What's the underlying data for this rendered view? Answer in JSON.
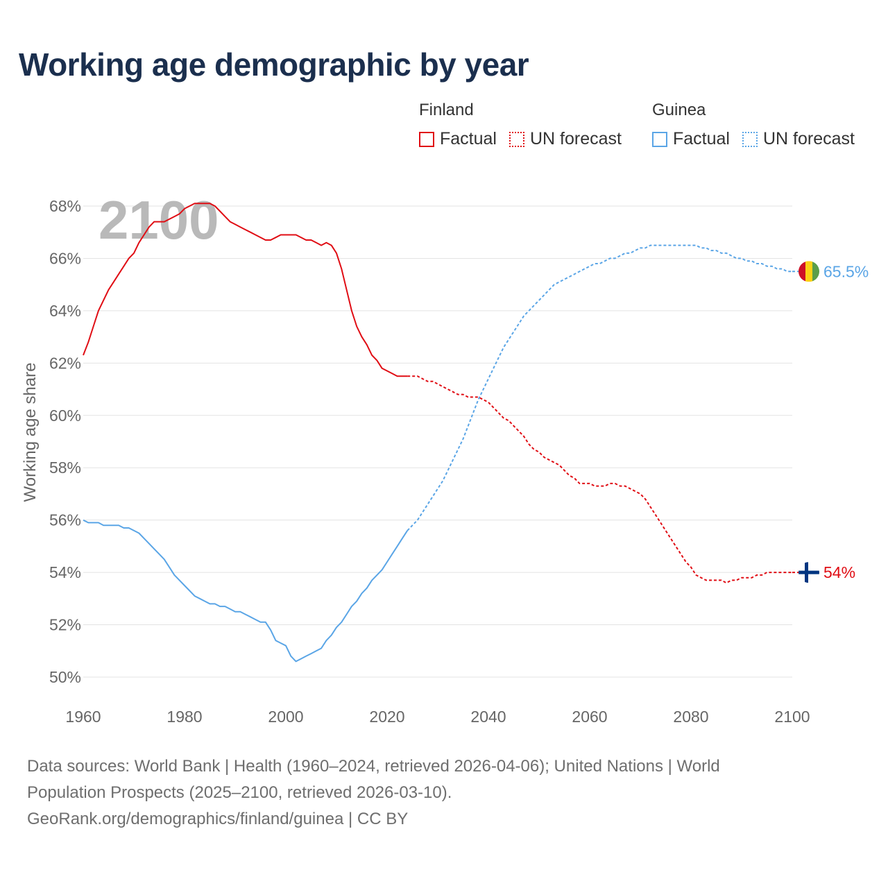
{
  "title": "Working age demographic by year",
  "legend": {
    "groups": [
      {
        "name": "Finland",
        "color": "#e00d14",
        "factual_label": "Factual",
        "forecast_label": "UN forecast"
      },
      {
        "name": "Guinea",
        "color": "#5aa5e6",
        "factual_label": "Factual",
        "forecast_label": "UN forecast"
      }
    ]
  },
  "year_watermark": "2100",
  "footer": {
    "line1": "Data sources: World Bank | Health (1960–2024, retrieved 2026-04-06); United Nations | World",
    "line2": "Population Prospects (2025–2100, retrieved 2026-03-10).",
    "line3": "GeoRank.org/demographics/finland/guinea | CC BY"
  },
  "chart_data": {
    "type": "line",
    "title": "Working age demographic by year",
    "xlabel": "",
    "ylabel": "Working age share",
    "xlim": [
      1960,
      2100
    ],
    "ylim": [
      50,
      68
    ],
    "x_ticks": [
      "1960",
      "1980",
      "2000",
      "2020",
      "2040",
      "2060",
      "2080",
      "2100"
    ],
    "y_ticks": [
      "50%",
      "52%",
      "54%",
      "56%",
      "58%",
      "60%",
      "62%",
      "64%",
      "66%",
      "68%"
    ],
    "factual_end_year": 2024,
    "series": [
      {
        "name": "Finland",
        "color": "#e00d14",
        "end_label": "54%",
        "flag": "finland",
        "points": [
          [
            1960,
            62.3
          ],
          [
            1961,
            62.8
          ],
          [
            1962,
            63.4
          ],
          [
            1963,
            64.0
          ],
          [
            1964,
            64.4
          ],
          [
            1965,
            64.8
          ],
          [
            1966,
            65.1
          ],
          [
            1967,
            65.4
          ],
          [
            1968,
            65.7
          ],
          [
            1969,
            66.0
          ],
          [
            1970,
            66.2
          ],
          [
            1971,
            66.6
          ],
          [
            1972,
            66.9
          ],
          [
            1973,
            67.2
          ],
          [
            1974,
            67.4
          ],
          [
            1975,
            67.4
          ],
          [
            1976,
            67.4
          ],
          [
            1977,
            67.5
          ],
          [
            1978,
            67.6
          ],
          [
            1979,
            67.7
          ],
          [
            1980,
            67.9
          ],
          [
            1981,
            68.0
          ],
          [
            1982,
            68.1
          ],
          [
            1983,
            68.1
          ],
          [
            1984,
            68.1
          ],
          [
            1985,
            68.1
          ],
          [
            1986,
            68.0
          ],
          [
            1987,
            67.8
          ],
          [
            1988,
            67.6
          ],
          [
            1989,
            67.4
          ],
          [
            1990,
            67.3
          ],
          [
            1991,
            67.2
          ],
          [
            1992,
            67.1
          ],
          [
            1993,
            67.0
          ],
          [
            1994,
            66.9
          ],
          [
            1995,
            66.8
          ],
          [
            1996,
            66.7
          ],
          [
            1997,
            66.7
          ],
          [
            1998,
            66.8
          ],
          [
            1999,
            66.9
          ],
          [
            2000,
            66.9
          ],
          [
            2001,
            66.9
          ],
          [
            2002,
            66.9
          ],
          [
            2003,
            66.8
          ],
          [
            2004,
            66.7
          ],
          [
            2005,
            66.7
          ],
          [
            2006,
            66.6
          ],
          [
            2007,
            66.5
          ],
          [
            2008,
            66.6
          ],
          [
            2009,
            66.5
          ],
          [
            2010,
            66.2
          ],
          [
            2011,
            65.6
          ],
          [
            2012,
            64.8
          ],
          [
            2013,
            64.0
          ],
          [
            2014,
            63.4
          ],
          [
            2015,
            63.0
          ],
          [
            2016,
            62.7
          ],
          [
            2017,
            62.3
          ],
          [
            2018,
            62.1
          ],
          [
            2019,
            61.8
          ],
          [
            2020,
            61.7
          ],
          [
            2021,
            61.6
          ],
          [
            2022,
            61.5
          ],
          [
            2023,
            61.5
          ],
          [
            2024,
            61.5
          ],
          [
            2025,
            61.5
          ],
          [
            2026,
            61.5
          ],
          [
            2027,
            61.4
          ],
          [
            2028,
            61.3
          ],
          [
            2029,
            61.3
          ],
          [
            2030,
            61.2
          ],
          [
            2031,
            61.1
          ],
          [
            2032,
            61.0
          ],
          [
            2033,
            60.9
          ],
          [
            2034,
            60.8
          ],
          [
            2035,
            60.8
          ],
          [
            2036,
            60.7
          ],
          [
            2037,
            60.7
          ],
          [
            2038,
            60.7
          ],
          [
            2039,
            60.6
          ],
          [
            2040,
            60.5
          ],
          [
            2041,
            60.3
          ],
          [
            2042,
            60.1
          ],
          [
            2043,
            59.9
          ],
          [
            2044,
            59.8
          ],
          [
            2045,
            59.6
          ],
          [
            2046,
            59.4
          ],
          [
            2047,
            59.2
          ],
          [
            2048,
            58.9
          ],
          [
            2049,
            58.7
          ],
          [
            2050,
            58.6
          ],
          [
            2051,
            58.4
          ],
          [
            2052,
            58.3
          ],
          [
            2053,
            58.2
          ],
          [
            2054,
            58.1
          ],
          [
            2055,
            57.9
          ],
          [
            2056,
            57.7
          ],
          [
            2057,
            57.6
          ],
          [
            2058,
            57.4
          ],
          [
            2059,
            57.4
          ],
          [
            2060,
            57.4
          ],
          [
            2061,
            57.3
          ],
          [
            2062,
            57.3
          ],
          [
            2063,
            57.3
          ],
          [
            2064,
            57.4
          ],
          [
            2065,
            57.4
          ],
          [
            2066,
            57.3
          ],
          [
            2067,
            57.3
          ],
          [
            2068,
            57.2
          ],
          [
            2069,
            57.1
          ],
          [
            2070,
            57.0
          ],
          [
            2071,
            56.8
          ],
          [
            2072,
            56.5
          ],
          [
            2073,
            56.2
          ],
          [
            2074,
            55.9
          ],
          [
            2075,
            55.6
          ],
          [
            2076,
            55.3
          ],
          [
            2077,
            55.0
          ],
          [
            2078,
            54.7
          ],
          [
            2079,
            54.4
          ],
          [
            2080,
            54.2
          ],
          [
            2081,
            53.9
          ],
          [
            2082,
            53.8
          ],
          [
            2083,
            53.7
          ],
          [
            2084,
            53.7
          ],
          [
            2085,
            53.7
          ],
          [
            2086,
            53.7
          ],
          [
            2087,
            53.6
          ],
          [
            2088,
            53.7
          ],
          [
            2089,
            53.7
          ],
          [
            2090,
            53.8
          ],
          [
            2091,
            53.8
          ],
          [
            2092,
            53.8
          ],
          [
            2093,
            53.9
          ],
          [
            2094,
            53.9
          ],
          [
            2095,
            54.0
          ],
          [
            2096,
            54.0
          ],
          [
            2097,
            54.0
          ],
          [
            2098,
            54.0
          ],
          [
            2099,
            54.0
          ],
          [
            2100,
            54.0
          ]
        ]
      },
      {
        "name": "Guinea",
        "color": "#5aa5e6",
        "end_label": "65.5%",
        "flag": "guinea",
        "points": [
          [
            1960,
            56.0
          ],
          [
            1961,
            55.9
          ],
          [
            1962,
            55.9
          ],
          [
            1963,
            55.9
          ],
          [
            1964,
            55.8
          ],
          [
            1965,
            55.8
          ],
          [
            1966,
            55.8
          ],
          [
            1967,
            55.8
          ],
          [
            1968,
            55.7
          ],
          [
            1969,
            55.7
          ],
          [
            1970,
            55.6
          ],
          [
            1971,
            55.5
          ],
          [
            1972,
            55.3
          ],
          [
            1973,
            55.1
          ],
          [
            1974,
            54.9
          ],
          [
            1975,
            54.7
          ],
          [
            1976,
            54.5
          ],
          [
            1977,
            54.2
          ],
          [
            1978,
            53.9
          ],
          [
            1979,
            53.7
          ],
          [
            1980,
            53.5
          ],
          [
            1981,
            53.3
          ],
          [
            1982,
            53.1
          ],
          [
            1983,
            53.0
          ],
          [
            1984,
            52.9
          ],
          [
            1985,
            52.8
          ],
          [
            1986,
            52.8
          ],
          [
            1987,
            52.7
          ],
          [
            1988,
            52.7
          ],
          [
            1989,
            52.6
          ],
          [
            1990,
            52.5
          ],
          [
            1991,
            52.5
          ],
          [
            1992,
            52.4
          ],
          [
            1993,
            52.3
          ],
          [
            1994,
            52.2
          ],
          [
            1995,
            52.1
          ],
          [
            1996,
            52.1
          ],
          [
            1997,
            51.8
          ],
          [
            1998,
            51.4
          ],
          [
            1999,
            51.3
          ],
          [
            2000,
            51.2
          ],
          [
            2001,
            50.8
          ],
          [
            2002,
            50.6
          ],
          [
            2003,
            50.7
          ],
          [
            2004,
            50.8
          ],
          [
            2005,
            50.9
          ],
          [
            2006,
            51.0
          ],
          [
            2007,
            51.1
          ],
          [
            2008,
            51.4
          ],
          [
            2009,
            51.6
          ],
          [
            2010,
            51.9
          ],
          [
            2011,
            52.1
          ],
          [
            2012,
            52.4
          ],
          [
            2013,
            52.7
          ],
          [
            2014,
            52.9
          ],
          [
            2015,
            53.2
          ],
          [
            2016,
            53.4
          ],
          [
            2017,
            53.7
          ],
          [
            2018,
            53.9
          ],
          [
            2019,
            54.1
          ],
          [
            2020,
            54.4
          ],
          [
            2021,
            54.7
          ],
          [
            2022,
            55.0
          ],
          [
            2023,
            55.3
          ],
          [
            2024,
            55.6
          ],
          [
            2025,
            55.8
          ],
          [
            2026,
            56.0
          ],
          [
            2027,
            56.3
          ],
          [
            2028,
            56.6
          ],
          [
            2029,
            56.9
          ],
          [
            2030,
            57.2
          ],
          [
            2031,
            57.5
          ],
          [
            2032,
            57.9
          ],
          [
            2033,
            58.3
          ],
          [
            2034,
            58.7
          ],
          [
            2035,
            59.1
          ],
          [
            2036,
            59.6
          ],
          [
            2037,
            60.1
          ],
          [
            2038,
            60.6
          ],
          [
            2039,
            61.0
          ],
          [
            2040,
            61.4
          ],
          [
            2041,
            61.8
          ],
          [
            2042,
            62.2
          ],
          [
            2043,
            62.6
          ],
          [
            2044,
            62.9
          ],
          [
            2045,
            63.2
          ],
          [
            2046,
            63.5
          ],
          [
            2047,
            63.8
          ],
          [
            2048,
            64.0
          ],
          [
            2049,
            64.2
          ],
          [
            2050,
            64.4
          ],
          [
            2051,
            64.6
          ],
          [
            2052,
            64.8
          ],
          [
            2053,
            65.0
          ],
          [
            2054,
            65.1
          ],
          [
            2055,
            65.2
          ],
          [
            2056,
            65.3
          ],
          [
            2057,
            65.4
          ],
          [
            2058,
            65.5
          ],
          [
            2059,
            65.6
          ],
          [
            2060,
            65.7
          ],
          [
            2061,
            65.8
          ],
          [
            2062,
            65.8
          ],
          [
            2063,
            65.9
          ],
          [
            2064,
            66.0
          ],
          [
            2065,
            66.0
          ],
          [
            2066,
            66.1
          ],
          [
            2067,
            66.2
          ],
          [
            2068,
            66.2
          ],
          [
            2069,
            66.3
          ],
          [
            2070,
            66.4
          ],
          [
            2071,
            66.4
          ],
          [
            2072,
            66.5
          ],
          [
            2073,
            66.5
          ],
          [
            2074,
            66.5
          ],
          [
            2075,
            66.5
          ],
          [
            2076,
            66.5
          ],
          [
            2077,
            66.5
          ],
          [
            2078,
            66.5
          ],
          [
            2079,
            66.5
          ],
          [
            2080,
            66.5
          ],
          [
            2081,
            66.5
          ],
          [
            2082,
            66.4
          ],
          [
            2083,
            66.4
          ],
          [
            2084,
            66.3
          ],
          [
            2085,
            66.3
          ],
          [
            2086,
            66.2
          ],
          [
            2087,
            66.2
          ],
          [
            2088,
            66.1
          ],
          [
            2089,
            66.0
          ],
          [
            2090,
            66.0
          ],
          [
            2091,
            65.9
          ],
          [
            2092,
            65.9
          ],
          [
            2093,
            65.8
          ],
          [
            2094,
            65.8
          ],
          [
            2095,
            65.7
          ],
          [
            2096,
            65.7
          ],
          [
            2097,
            65.6
          ],
          [
            2098,
            65.6
          ],
          [
            2099,
            65.5
          ],
          [
            2100,
            65.5
          ]
        ]
      }
    ]
  }
}
